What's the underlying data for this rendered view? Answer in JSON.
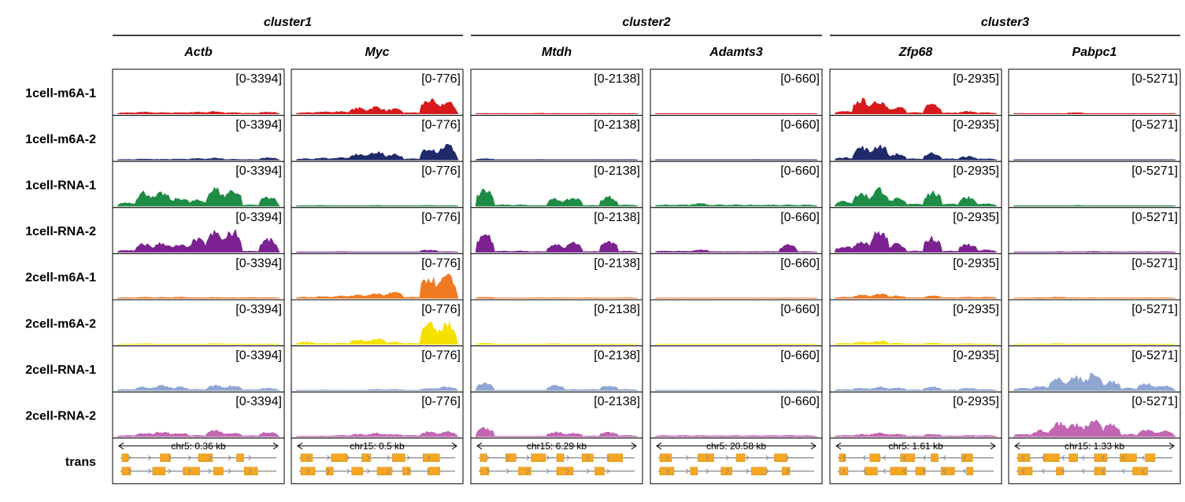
{
  "chart_data": {
    "type": "area",
    "clusters": [
      {
        "name": "cluster1",
        "genes": [
          "Actb",
          "Myc"
        ]
      },
      {
        "name": "cluster2",
        "genes": [
          "Mtdh",
          "Adamts3"
        ]
      },
      {
        "name": "cluster3",
        "genes": [
          "Zfp68",
          "Pabpc1"
        ]
      }
    ],
    "genes": [
      {
        "name": "Actb",
        "range": "[0-3394]",
        "locus": "chr5: 0.36 kb",
        "strand": "both"
      },
      {
        "name": "Myc",
        "range": "[0-776]",
        "locus": "chr15: 0.5 kb",
        "strand": "plus"
      },
      {
        "name": "Mtdh",
        "range": "[0-2138]",
        "locus": "chr15: 6.29 kb",
        "strand": "plus"
      },
      {
        "name": "Adamts3",
        "range": "[0-660]",
        "locus": "chr5: 20.58 kb",
        "strand": "both"
      },
      {
        "name": "Zfp68",
        "range": "[0-2935]",
        "locus": "chr5: 1.61 kb",
        "strand": "minus"
      },
      {
        "name": "Pabpc1",
        "range": "[0-5271]",
        "locus": "chr15: 1.33 kb",
        "strand": "minus"
      }
    ],
    "tracks": [
      {
        "name": "1cell-m6A-1",
        "color": "#d7191c"
      },
      {
        "name": "1cell-m6A-2",
        "color": "#1f2a6b"
      },
      {
        "name": "1cell-RNA-1",
        "color": "#1e8c45"
      },
      {
        "name": "1cell-RNA-2",
        "color": "#7b2191"
      },
      {
        "name": "2cell-m6A-1",
        "color": "#f07a22"
      },
      {
        "name": "2cell-m6A-2",
        "color": "#f5e000"
      },
      {
        "name": "2cell-RNA-1",
        "color": "#8fa6d2"
      },
      {
        "name": "2cell-RNA-2",
        "color": "#c266b4"
      }
    ],
    "transcript_track": {
      "name": "trans",
      "color": "#f5a623"
    },
    "signal_levels": [
      [
        [
          0.05,
          0.08,
          0.05,
          0.06,
          0.08,
          0.1,
          0.05,
          0.03,
          0.08
        ],
        [
          0.05,
          0.1,
          0.1,
          0.25,
          0.3,
          0.2,
          0.05,
          0.6,
          0.5
        ],
        [
          0.02,
          0.02,
          0.01,
          0.03,
          0.02,
          0.01,
          0.02,
          0.02,
          0.02
        ],
        [
          0.01,
          0.01,
          0.01,
          0.01,
          0.01,
          0.01,
          0.01,
          0.01,
          0.01
        ],
        [
          0.1,
          0.6,
          0.55,
          0.3,
          0.05,
          0.45,
          0.05,
          0.1,
          0.05
        ],
        [
          0.01,
          0.01,
          0.01,
          0.05,
          0.01,
          0.01,
          0.01,
          0.01,
          0.01
        ]
      ],
      [
        [
          0.02,
          0.04,
          0.03,
          0.04,
          0.06,
          0.08,
          0.03,
          0.02,
          0.1
        ],
        [
          0.05,
          0.08,
          0.1,
          0.25,
          0.35,
          0.25,
          0.05,
          0.55,
          0.65
        ],
        [
          0.05,
          0.01,
          0.01,
          0.02,
          0.02,
          0.01,
          0.02,
          0.01,
          0.02
        ],
        [
          0.01,
          0.01,
          0.01,
          0.01,
          0.01,
          0.02,
          0.01,
          0.01,
          0.01
        ],
        [
          0.1,
          0.55,
          0.65,
          0.25,
          0.05,
          0.3,
          0.05,
          0.15,
          0.05
        ],
        [
          0.01,
          0.01,
          0.01,
          0.01,
          0.01,
          0.01,
          0.01,
          0.01,
          0.01
        ]
      ],
      [
        [
          0.15,
          0.6,
          0.55,
          0.35,
          0.25,
          0.75,
          0.7,
          0.05,
          0.4
        ],
        [
          0.02,
          0.03,
          0.02,
          0.02,
          0.03,
          0.02,
          0.01,
          0.03,
          0.02
        ],
        [
          0.7,
          0.05,
          0.05,
          0.03,
          0.3,
          0.35,
          0.03,
          0.4,
          0.05
        ],
        [
          0.05,
          0.05,
          0.1,
          0.05,
          0.05,
          0.05,
          0.05,
          0.05,
          0.05
        ],
        [
          0.2,
          0.55,
          0.75,
          0.3,
          0.1,
          0.6,
          0.1,
          0.4,
          0.1
        ],
        [
          0.01,
          0.02,
          0.02,
          0.03,
          0.02,
          0.02,
          0.01,
          0.02,
          0.02
        ]
      ],
      [
        [
          0.08,
          0.35,
          0.4,
          0.3,
          0.55,
          0.85,
          0.9,
          0.05,
          0.55
        ],
        [
          0.01,
          0.01,
          0.02,
          0.01,
          0.01,
          0.01,
          0.01,
          0.1,
          0.02
        ],
        [
          0.8,
          0.05,
          0.05,
          0.03,
          0.3,
          0.4,
          0.03,
          0.45,
          0.05
        ],
        [
          0.05,
          0.05,
          0.1,
          0.03,
          0.03,
          0.03,
          0.03,
          0.3,
          0.03
        ],
        [
          0.25,
          0.5,
          0.9,
          0.35,
          0.05,
          0.65,
          0.05,
          0.35,
          0.1
        ],
        [
          0.01,
          0.01,
          0.02,
          0.02,
          0.03,
          0.02,
          0.02,
          0.02,
          0.02
        ]
      ],
      [
        [
          0.03,
          0.05,
          0.04,
          0.05,
          0.03,
          0.04,
          0.03,
          0.04,
          0.03
        ],
        [
          0.05,
          0.08,
          0.1,
          0.15,
          0.2,
          0.25,
          0.05,
          0.9,
          0.95
        ],
        [
          0.05,
          0.01,
          0.01,
          0.02,
          0.02,
          0.01,
          0.02,
          0.01,
          0.02
        ],
        [
          0.01,
          0.01,
          0.01,
          0.01,
          0.01,
          0.01,
          0.01,
          0.01,
          0.01
        ],
        [
          0.05,
          0.15,
          0.2,
          0.1,
          0.03,
          0.1,
          0.03,
          0.05,
          0.05
        ],
        [
          0.01,
          0.03,
          0.05,
          0.02,
          0.02,
          0.02,
          0.02,
          0.02,
          0.02
        ]
      ],
      [
        [
          0.01,
          0.03,
          0.02,
          0.01,
          0.01,
          0.03,
          0.02,
          0.01,
          0.02
        ],
        [
          0.1,
          0.05,
          0.05,
          0.2,
          0.25,
          0.1,
          0.05,
          0.85,
          0.9
        ],
        [
          0.05,
          0.01,
          0.01,
          0.02,
          0.03,
          0.01,
          0.02,
          0.01,
          0.02
        ],
        [
          0.01,
          0.01,
          0.01,
          0.01,
          0.01,
          0.01,
          0.01,
          0.01,
          0.01
        ],
        [
          0.05,
          0.1,
          0.15,
          0.05,
          0.02,
          0.05,
          0.02,
          0.03,
          0.02
        ],
        [
          0.01,
          0.02,
          0.03,
          0.02,
          0.02,
          0.02,
          0.02,
          0.02,
          0.02
        ]
      ],
      [
        [
          0.05,
          0.15,
          0.2,
          0.15,
          0.05,
          0.2,
          0.2,
          0.05,
          0.1
        ],
        [
          0.02,
          0.03,
          0.02,
          0.02,
          0.05,
          0.05,
          0.02,
          0.1,
          0.15
        ],
        [
          0.3,
          0.01,
          0.01,
          0.02,
          0.2,
          0.05,
          0.05,
          0.2,
          0.05
        ],
        [
          0.01,
          0.02,
          0.02,
          0.02,
          0.02,
          0.02,
          0.02,
          0.02,
          0.02
        ],
        [
          0.05,
          0.1,
          0.15,
          0.1,
          0.03,
          0.15,
          0.03,
          0.1,
          0.05
        ],
        [
          0.1,
          0.2,
          0.5,
          0.6,
          0.7,
          0.4,
          0.1,
          0.3,
          0.2
        ]
      ],
      [
        [
          0.05,
          0.15,
          0.2,
          0.15,
          0.05,
          0.25,
          0.15,
          0.05,
          0.2
        ],
        [
          0.02,
          0.03,
          0.05,
          0.1,
          0.15,
          0.1,
          0.05,
          0.2,
          0.2
        ],
        [
          0.35,
          0.01,
          0.01,
          0.02,
          0.2,
          0.15,
          0.03,
          0.2,
          0.05
        ],
        [
          0.05,
          0.05,
          0.05,
          0.05,
          0.05,
          0.05,
          0.05,
          0.05,
          0.05
        ],
        [
          0.05,
          0.1,
          0.15,
          0.1,
          0.03,
          0.1,
          0.03,
          0.05,
          0.05
        ],
        [
          0.1,
          0.25,
          0.6,
          0.55,
          0.7,
          0.5,
          0.1,
          0.3,
          0.25
        ]
      ]
    ]
  }
}
